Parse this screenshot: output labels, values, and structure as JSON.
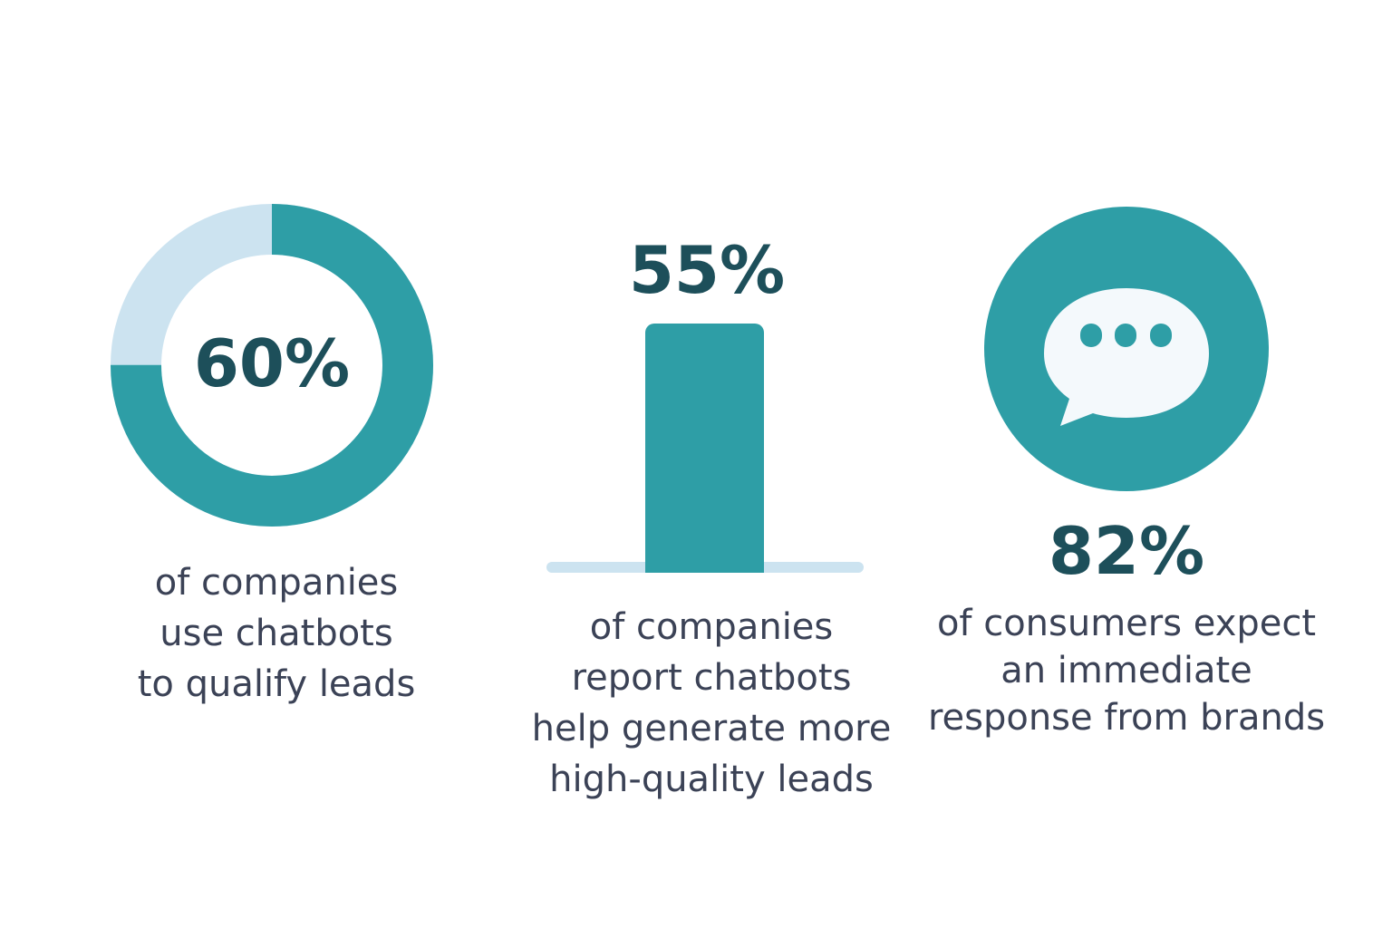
{
  "chart_data": [
    {
      "type": "pie",
      "style": "donut",
      "value": 60,
      "value_label": "60%",
      "caption_lines": [
        "of companies",
        "use chatbots",
        "to qualify leads"
      ],
      "colors": {
        "filled": "#2e9ea6",
        "remainder": "#cce3f0"
      }
    },
    {
      "type": "bar",
      "value": 55,
      "value_label": "55%",
      "caption_lines": [
        "of companies",
        "report chatbots",
        "help generate more",
        "high-quality leads"
      ],
      "colors": {
        "bar": "#2e9ea6",
        "baseline": "#cce3f0"
      }
    },
    {
      "type": "other",
      "icon": "chat-bubble-icon",
      "value": 82,
      "value_label": "82%",
      "caption_lines": [
        "of consumers expect",
        "an immediate",
        "response from brands"
      ],
      "colors": {
        "circle": "#2e9ea6",
        "bubble": "#f4f9fc",
        "dots": "#2e9ea6"
      }
    }
  ]
}
